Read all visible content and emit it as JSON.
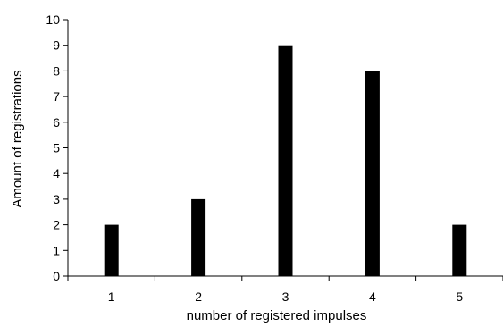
{
  "chart_data": {
    "type": "bar",
    "title": "",
    "xlabel": "number of registered impulses",
    "ylabel": "Amount of registrations",
    "categories": [
      "1",
      "2",
      "3",
      "4",
      "5"
    ],
    "values": [
      2,
      3,
      9,
      8,
      2
    ],
    "ylim": [
      0,
      10
    ],
    "yticks": [
      "0",
      "1",
      "2",
      "3",
      "4",
      "5",
      "6",
      "7",
      "8",
      "9",
      "10"
    ],
    "grid": false,
    "legend": "none",
    "bar_color": "#000000"
  }
}
